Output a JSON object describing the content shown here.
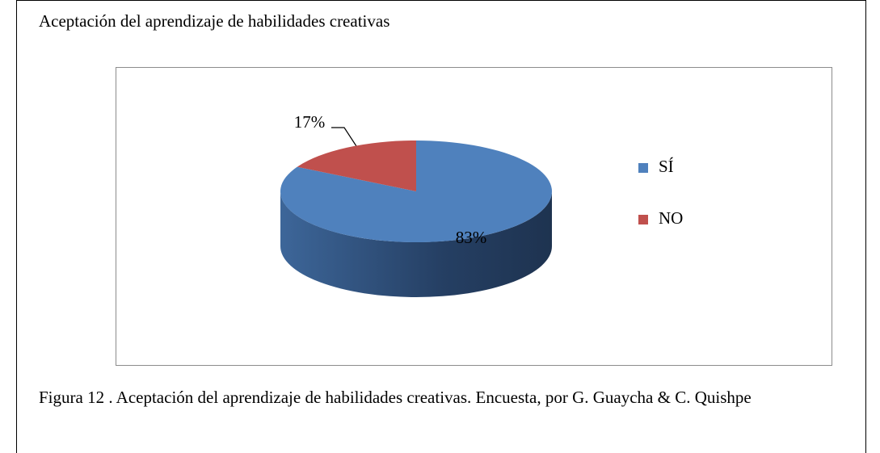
{
  "title": "Aceptación del aprendizaje de habilidades creativas",
  "chart_data": {
    "type": "pie",
    "categories": [
      "SÍ",
      "NO"
    ],
    "values": [
      83,
      17
    ],
    "value_labels": [
      "83%",
      "17%"
    ],
    "colors": [
      "#4f81bd",
      "#c0504d"
    ],
    "legend": "right"
  },
  "caption": "Figura 12 . Aceptación del aprendizaje de habilidades creativas. Encuesta, por G. Guaycha & C. Quishpe"
}
